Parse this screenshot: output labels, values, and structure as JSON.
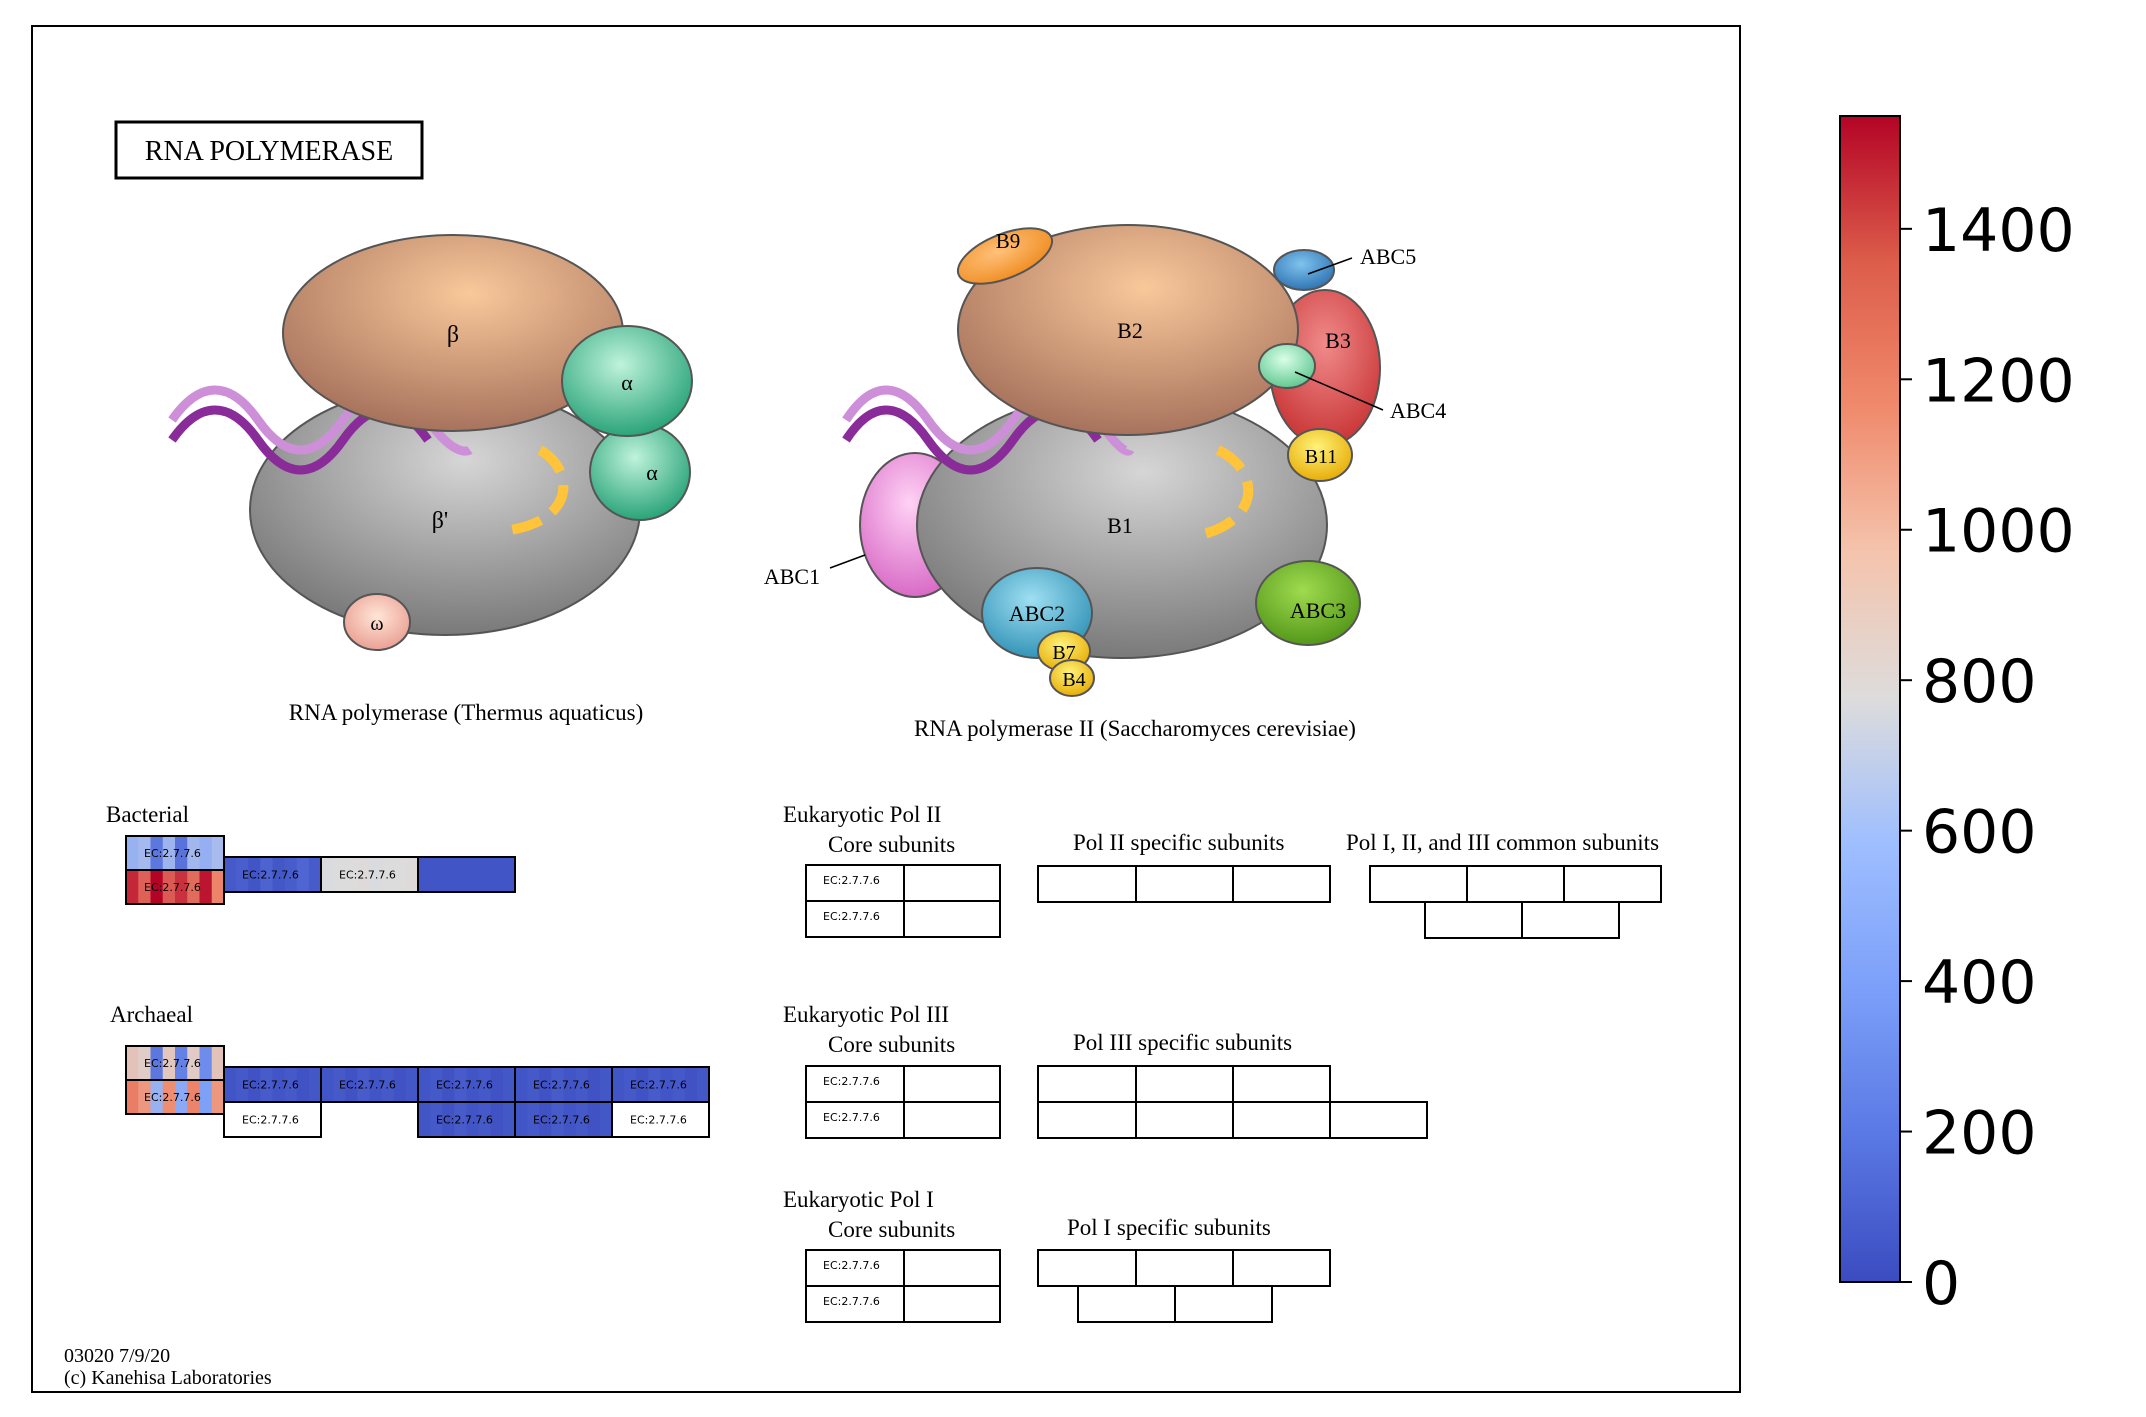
{
  "title": "RNA  POLYMERASE",
  "footer": {
    "code": "03020 7/9/20",
    "copyright": "(c) Kanehisa Laboratories"
  },
  "colors": {
    "cold": "#3b4cc0",
    "neutral": "#dddddd",
    "hot": "#b40426"
  },
  "taq": {
    "caption": "RNA polymerase (Thermus aquaticus)",
    "subunits": {
      "beta": "β",
      "beta_prime": "β'",
      "alpha1": "α",
      "alpha2": "α",
      "omega": "ω"
    }
  },
  "yeast": {
    "caption": "RNA polymerase II (Saccharomyces cerevisiae)",
    "subunits": {
      "B1": "B1",
      "B2": "B2",
      "B3": "B3",
      "B4": "B4",
      "B7": "B7",
      "B9": "B9",
      "B11": "B11",
      "ABC1": "ABC1",
      "ABC2": "ABC2",
      "ABC3": "ABC3",
      "ABC4": "ABC4",
      "ABC5": "ABC5"
    }
  },
  "sections": {
    "bacterial": "Bacterial",
    "archaeal": "Archaeal",
    "pol2": {
      "title": "Eukaryotic Pol II",
      "core": "Core subunits",
      "specific": "Pol II specific subunits",
      "common": "Pol I, II, and III common subunits"
    },
    "pol3": {
      "title": "Eukaryotic Pol III",
      "core": "Core subunits",
      "specific": "Pol III specific subunits"
    },
    "pol1": {
      "title": "Eukaryotic Pol I",
      "core": "Core subunits",
      "specific": "Pol I specific subunits"
    }
  },
  "ec_label": "EC:2.7.7.6",
  "gene_boxes": {
    "bacterial": [
      {
        "label": "EC:2.7.7.6",
        "stripes": [
          500,
          550,
          200,
          520,
          180,
          540,
          490,
          560
        ]
      },
      {
        "label": "EC:2.7.7.6",
        "stripes": [
          1450,
          1280,
          1550,
          1300,
          1420,
          1250,
          1500,
          1180
        ]
      },
      {
        "label": "EC:2.7.7.6",
        "stripes": [
          60,
          90,
          40,
          110,
          50,
          80,
          120,
          70
        ]
      },
      {
        "label": "EC:2.7.7.6",
        "stripes": [
          760,
          780,
          770,
          790,
          760,
          780,
          770,
          790
        ]
      },
      {
        "label": "",
        "stripes": [
          40,
          40,
          40,
          40,
          40,
          40,
          40,
          40
        ]
      }
    ],
    "archaeal": [
      {
        "label": "EC:2.7.7.6",
        "stripes": [
          900,
          850,
          200,
          880,
          250,
          860,
          300,
          900
        ]
      },
      {
        "label": "EC:2.7.7.6",
        "stripes": [
          1200,
          1100,
          500,
          1150,
          450,
          1180,
          400,
          1100
        ]
      },
      {
        "label": "EC:2.7.7.6",
        "stripes": [
          40,
          60,
          30,
          70,
          40,
          60,
          30,
          50
        ]
      },
      {
        "label": "EC:2.7.7.6",
        "stripes": [
          40,
          60,
          30,
          70,
          40,
          60,
          30,
          50
        ]
      },
      {
        "label": "EC:2.7.7.6",
        "stripes": [
          40,
          60,
          30,
          70,
          40,
          60,
          30,
          50
        ]
      },
      {
        "label": "EC:2.7.7.6",
        "stripes": [
          40,
          60,
          30,
          70,
          40,
          60,
          30,
          50
        ]
      },
      {
        "label": "EC:2.7.7.6",
        "stripes": [
          40,
          60,
          30,
          70,
          40,
          60,
          30,
          50
        ]
      },
      {
        "label": "EC:2.7.7.6",
        "stripes": []
      },
      {
        "label": "EC:2.7.7.6",
        "stripes": [
          40,
          60,
          30,
          70,
          40,
          60,
          30,
          50
        ]
      },
      {
        "label": "EC:2.7.7.6",
        "stripes": [
          40,
          60,
          30,
          70,
          40,
          60,
          30,
          50
        ]
      },
      {
        "label": "EC:2.7.7.6",
        "stripes": []
      }
    ]
  },
  "colorbar": {
    "min": 0,
    "max": 1550,
    "ticks": [
      0,
      200,
      400,
      600,
      800,
      1000,
      1200,
      1400
    ]
  }
}
